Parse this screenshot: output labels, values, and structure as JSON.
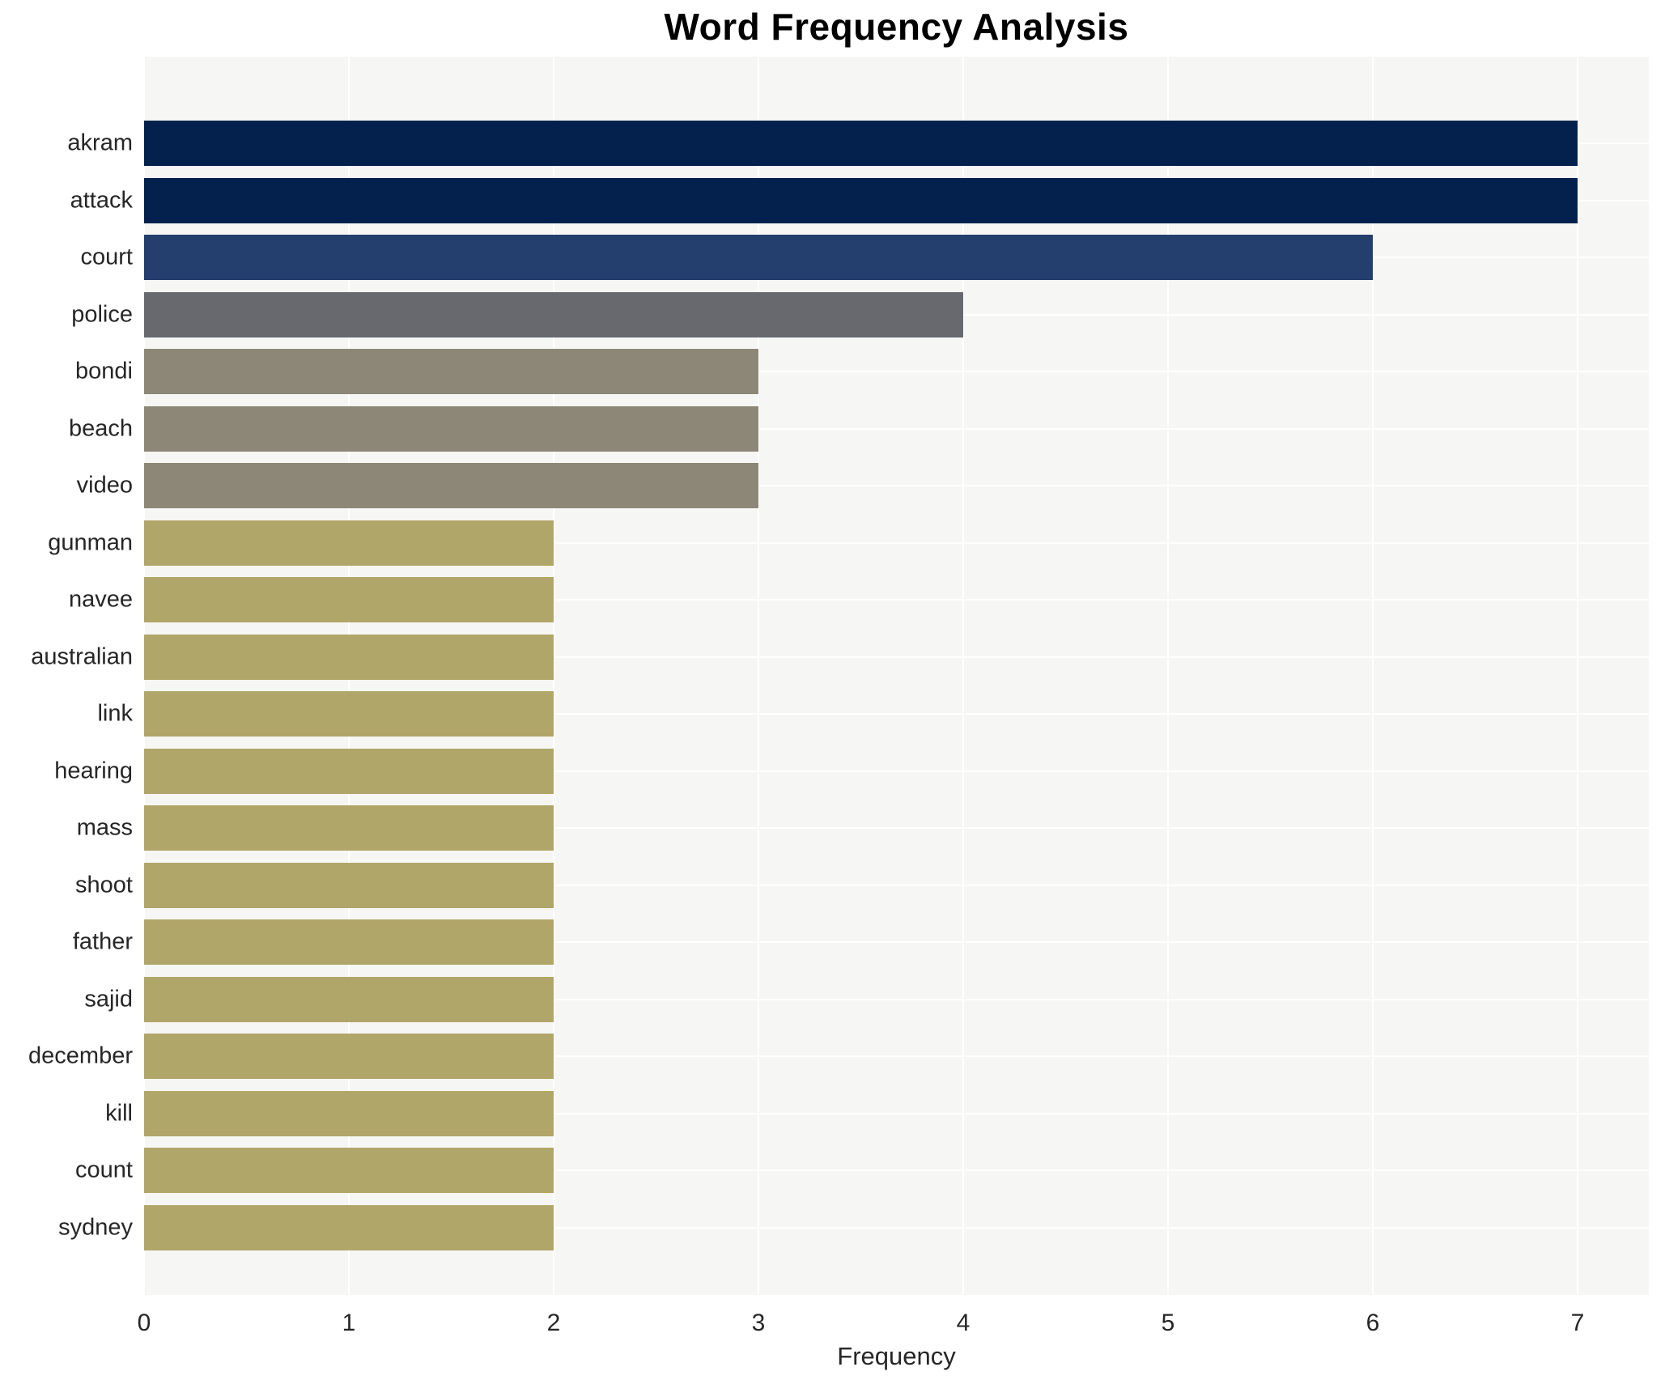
{
  "title": "Word Frequency Analysis",
  "chart_data": {
    "type": "bar",
    "orientation": "horizontal",
    "title": "Word Frequency Analysis",
    "xlabel": "Frequency",
    "ylabel": "",
    "xlim": [
      0,
      7.35
    ],
    "xticks": [
      "0",
      "1",
      "2",
      "3",
      "4",
      "5",
      "6",
      "7"
    ],
    "grid": true,
    "legend_position": "none",
    "plot_background": "#f6f6f4",
    "grid_color": "#ffffff",
    "categories": [
      "akram",
      "attack",
      "court",
      "police",
      "bondi",
      "beach",
      "video",
      "gunman",
      "navee",
      "australian",
      "link",
      "hearing",
      "mass",
      "shoot",
      "father",
      "sajid",
      "december",
      "kill",
      "count",
      "sydney"
    ],
    "values": [
      7,
      7,
      6,
      4,
      3,
      3,
      3,
      2,
      2,
      2,
      2,
      2,
      2,
      2,
      2,
      2,
      2,
      2,
      2,
      2
    ],
    "bar_colors": [
      "#04214d",
      "#04214d",
      "#243e6d",
      "#67696f",
      "#8d8777",
      "#8d8777",
      "#8d8777",
      "#b1a669",
      "#b1a669",
      "#b1a669",
      "#b1a669",
      "#b1a669",
      "#b1a669",
      "#b1a669",
      "#b1a669",
      "#b1a669",
      "#b1a669",
      "#b1a669",
      "#b1a669",
      "#b1a669"
    ]
  }
}
